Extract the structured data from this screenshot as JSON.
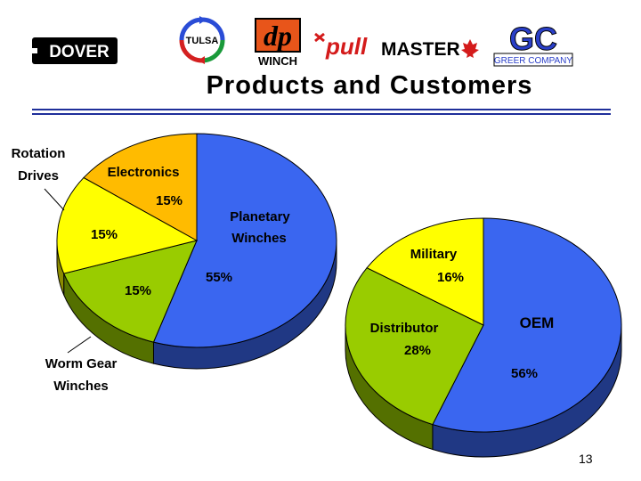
{
  "slide": {
    "title": "Products and Customers",
    "page_number": "13"
  },
  "logos": {
    "dover": "DOVER",
    "tulsa": "TULSA",
    "dp_top": "dp",
    "dp_bottom": "WINCH",
    "pull": "pull",
    "master": "MASTER",
    "gc": "GC",
    "greer": "GREER COMPANY"
  },
  "colors": {
    "blue": "#3a66f0",
    "green": "#99cc00",
    "yellow": "#ffff00",
    "orange": "#ffbb00",
    "rule": "#1f2f9a"
  },
  "chart_data": [
    {
      "type": "pie",
      "title": "",
      "slices": [
        {
          "label_lines": [
            "Planetary",
            "Winches"
          ],
          "value": 55,
          "value_label": "55%",
          "color": "#3a66f0"
        },
        {
          "label_lines": [
            "Worm Gear",
            "Winches"
          ],
          "value": 15,
          "value_label": "15%",
          "color": "#99cc00"
        },
        {
          "label_lines": [
            "Rotation",
            "Drives"
          ],
          "value": 15,
          "value_label": "15%",
          "color": "#ffff00"
        },
        {
          "label_lines": [
            "Electronics"
          ],
          "value": 15,
          "value_label": "15%",
          "color": "#ffbb00"
        }
      ]
    },
    {
      "type": "pie",
      "title": "",
      "slices": [
        {
          "label_lines": [
            "OEM"
          ],
          "value": 56,
          "value_label": "56%",
          "color": "#3a66f0"
        },
        {
          "label_lines": [
            "Distributor"
          ],
          "value": 28,
          "value_label": "28%",
          "color": "#99cc00"
        },
        {
          "label_lines": [
            "Military"
          ],
          "value": 16,
          "value_label": "16%",
          "color": "#ffff00"
        }
      ]
    }
  ]
}
